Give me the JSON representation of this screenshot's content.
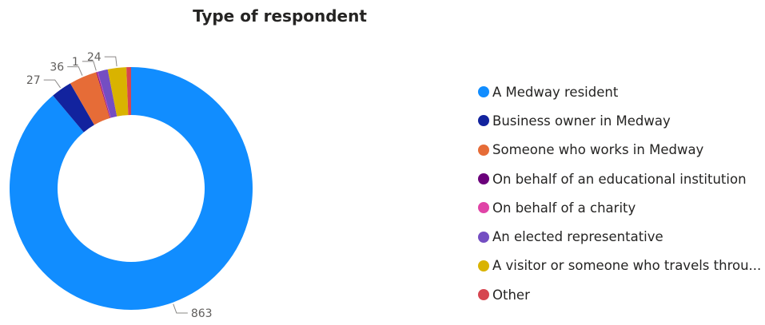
{
  "chart_data": {
    "type": "pie",
    "title": "Type of respondent",
    "slices": [
      {
        "label": "A Medway resident",
        "value": 863,
        "color": "#118DFF",
        "data_label": "863"
      },
      {
        "label": "Business owner in Medway",
        "value": 27,
        "color": "#12239E",
        "data_label": "27"
      },
      {
        "label": "Someone who works in Medway",
        "value": 36,
        "color": "#E66C37",
        "data_label": "36"
      },
      {
        "label": "On behalf of an educational institution",
        "value": 1,
        "color": "#6B007B",
        "data_label": "1"
      },
      {
        "label": "On behalf of a charity",
        "value": 1,
        "color": "#E044A7",
        "data_label": ""
      },
      {
        "label": "An elected representative",
        "value": 13,
        "color": "#744EC2",
        "data_label": ""
      },
      {
        "label": "A visitor or someone who travels throu...",
        "value": 24,
        "color": "#D9B300",
        "data_label": "24"
      },
      {
        "label": "Other",
        "value": 6,
        "color": "#D64550",
        "data_label": ""
      }
    ],
    "legend_position": "right"
  }
}
